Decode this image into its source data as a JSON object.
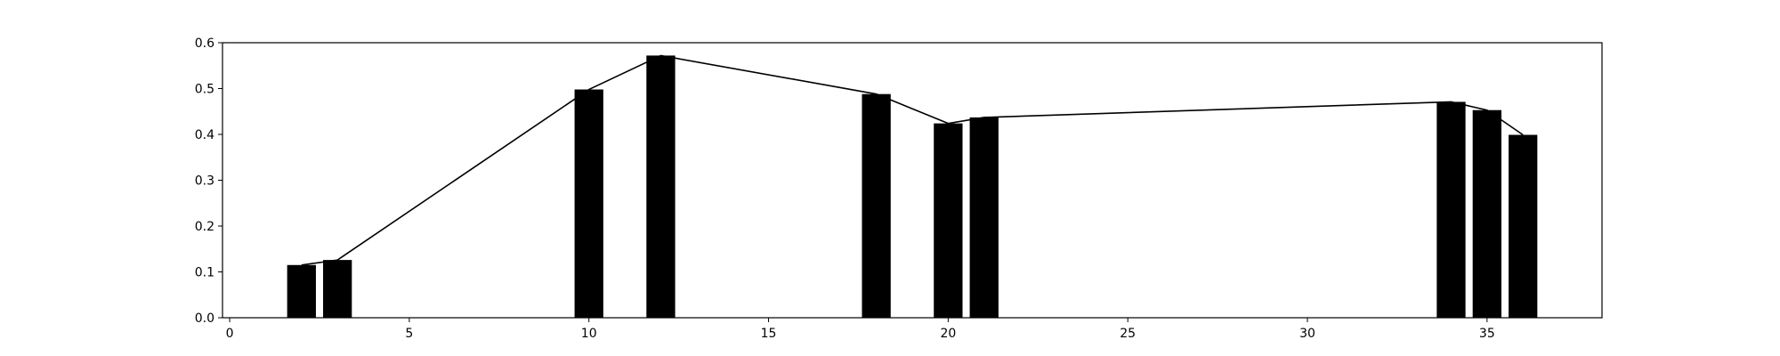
{
  "chart_data": {
    "type": "bar",
    "x": [
      2,
      3,
      10,
      12,
      18,
      20,
      21,
      34,
      35,
      36
    ],
    "values": [
      0.115,
      0.126,
      0.498,
      0.572,
      0.488,
      0.424,
      0.437,
      0.471,
      0.453,
      0.399
    ],
    "line_overlay": true,
    "title": "",
    "xlabel": "",
    "ylabel": "",
    "xlim": [
      -0.2,
      38.2
    ],
    "ylim": [
      0.0,
      0.6
    ],
    "xticks": [
      0,
      5,
      10,
      15,
      20,
      25,
      30,
      35
    ],
    "yticks": [
      0.0,
      0.1,
      0.2,
      0.3,
      0.4,
      0.5,
      0.6
    ],
    "xtick_labels": [
      "0",
      "5",
      "10",
      "15",
      "20",
      "25",
      "30",
      "35"
    ],
    "ytick_labels": [
      "0.0",
      "0.1",
      "0.2",
      "0.3",
      "0.4",
      "0.5",
      "0.6"
    ],
    "grid": false,
    "legend": "none",
    "bar_color": "#000000",
    "line_color": "#000000"
  }
}
